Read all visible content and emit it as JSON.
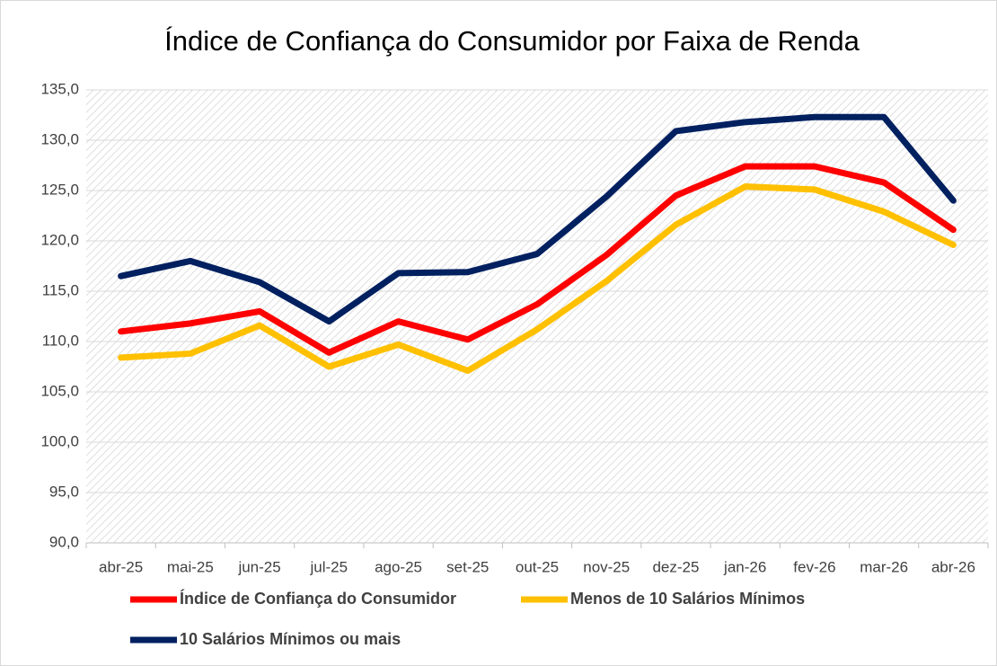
{
  "chart_data": {
    "type": "line",
    "title": "Índice de Confiança do Consumidor por Faixa de Renda",
    "categories": [
      "abr-25",
      "mai-25",
      "jun-25",
      "jul-25",
      "ago-25",
      "set-25",
      "out-25",
      "nov-25",
      "dez-25",
      "jan-26",
      "fev-26",
      "mar-26",
      "abr-26"
    ],
    "series": [
      {
        "name": "Índice de Confiança do Consumidor",
        "color": "#ff0000",
        "values": [
          111.0,
          111.8,
          113.0,
          108.9,
          112.0,
          110.2,
          113.7,
          118.6,
          124.5,
          127.4,
          127.4,
          125.8,
          121.1
        ]
      },
      {
        "name": "Menos de 10 Salários Mínimos",
        "color": "#ffc000",
        "values": [
          108.4,
          108.8,
          111.6,
          107.5,
          109.7,
          107.1,
          111.2,
          116.0,
          121.6,
          125.4,
          125.1,
          122.9,
          119.6
        ]
      },
      {
        "name": "10 Salários Mínimos ou mais",
        "color": "#002060",
        "values": [
          116.5,
          118.0,
          115.9,
          112.0,
          116.8,
          116.9,
          118.7,
          124.4,
          130.9,
          131.8,
          132.3,
          132.3,
          124.0
        ]
      }
    ],
    "ylim": [
      90,
      135
    ],
    "yticks": [
      {
        "value": 90,
        "label": "90,0"
      },
      {
        "value": 95,
        "label": "95,0"
      },
      {
        "value": 100,
        "label": "100,0"
      },
      {
        "value": 105,
        "label": "105,0"
      },
      {
        "value": 110,
        "label": "110,0"
      },
      {
        "value": 115,
        "label": "115,0"
      },
      {
        "value": 120,
        "label": "120,0"
      },
      {
        "value": 125,
        "label": "125,0"
      },
      {
        "value": 130,
        "label": "130,0"
      },
      {
        "value": 135,
        "label": "135,0"
      }
    ],
    "grid": true
  }
}
